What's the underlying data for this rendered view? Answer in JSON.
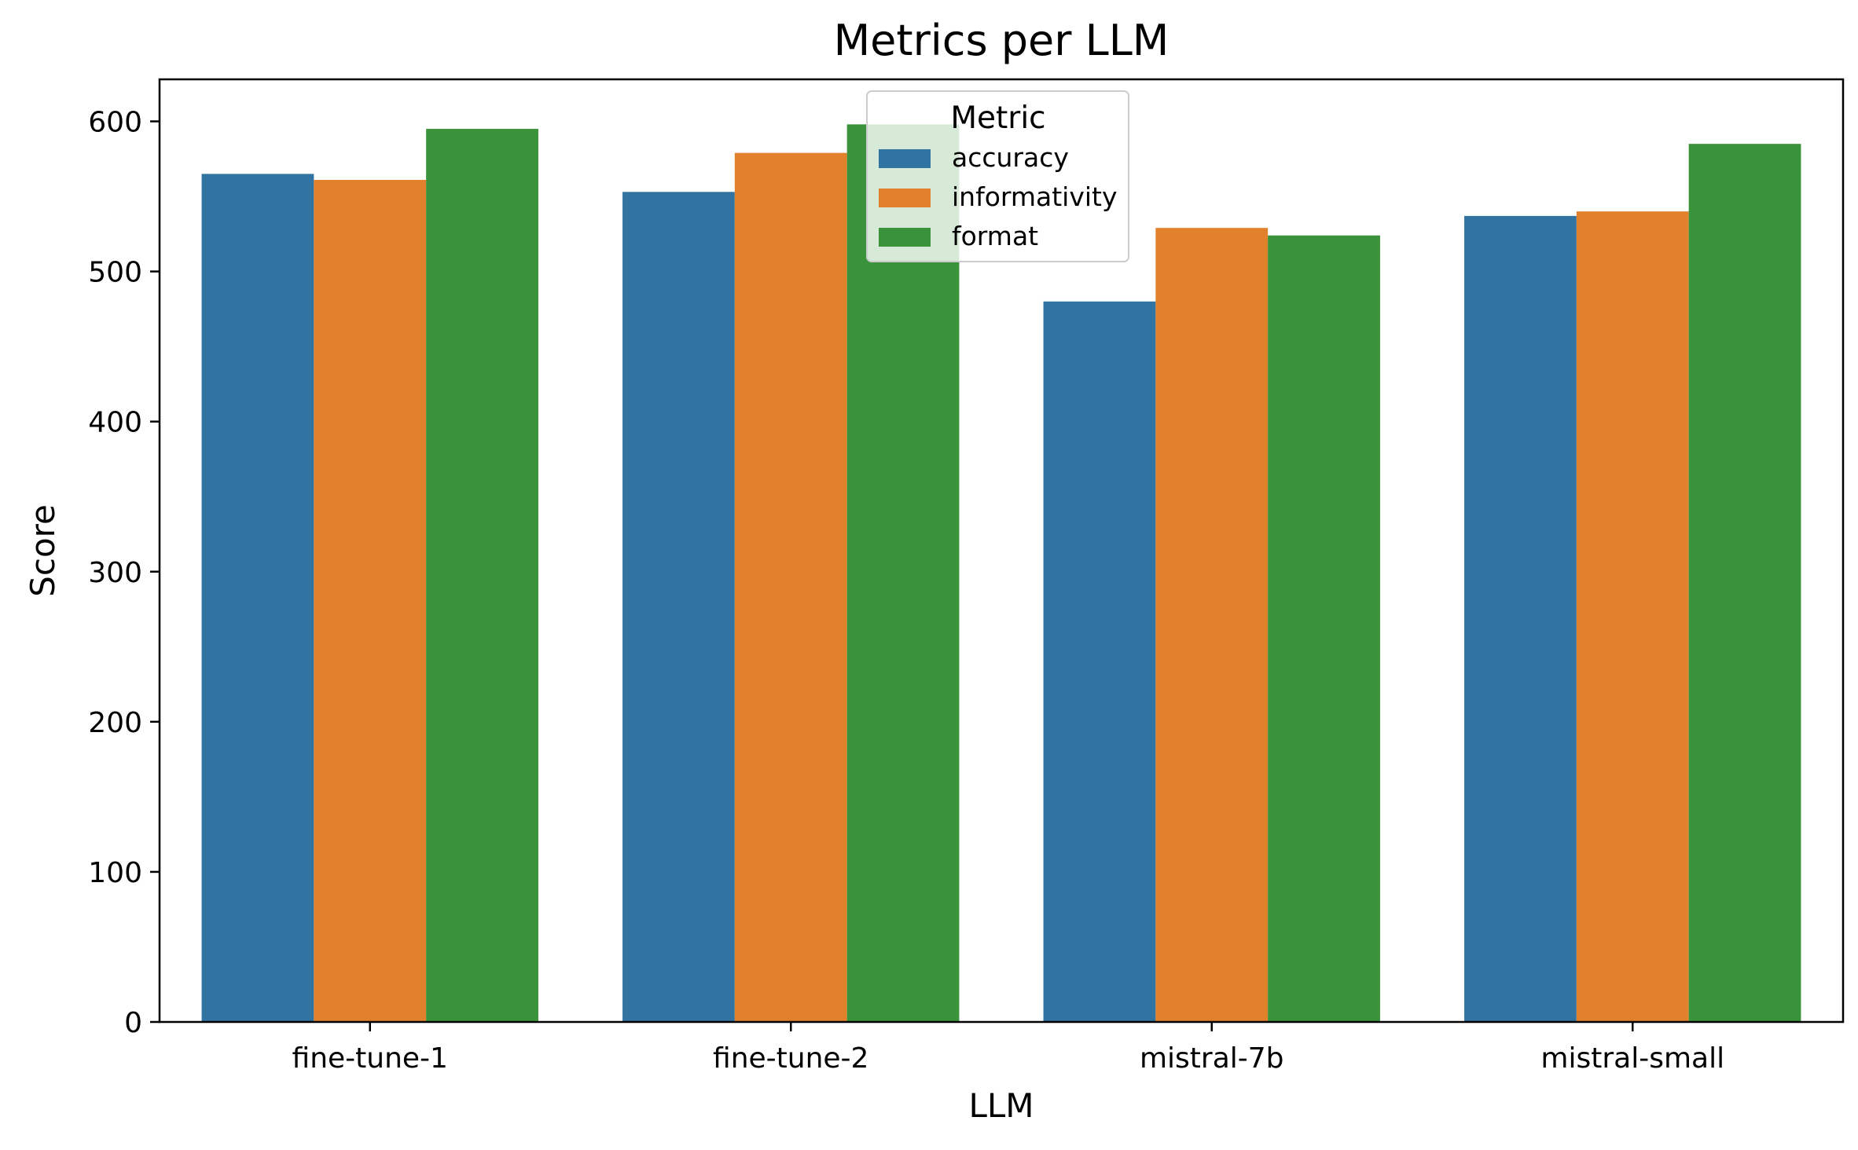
{
  "chart_data": {
    "type": "bar",
    "title": "Metrics per LLM",
    "xlabel": "LLM",
    "ylabel": "Score",
    "categories": [
      "fine-tune-1",
      "fine-tune-2",
      "mistral-7b",
      "mistral-small"
    ],
    "series": [
      {
        "name": "accuracy",
        "color": "#3274a1",
        "values": [
          565,
          553,
          480,
          537
        ]
      },
      {
        "name": "informativity",
        "color": "#e1812c",
        "values": [
          561,
          579,
          529,
          540
        ]
      },
      {
        "name": "format",
        "color": "#3a923a",
        "values": [
          595,
          598,
          524,
          585
        ]
      }
    ],
    "ylim": [
      0,
      628
    ],
    "yticks": [
      0,
      100,
      200,
      300,
      400,
      500,
      600
    ],
    "grid": false,
    "legend": {
      "title": "Metric",
      "placement": "upper-center"
    }
  }
}
